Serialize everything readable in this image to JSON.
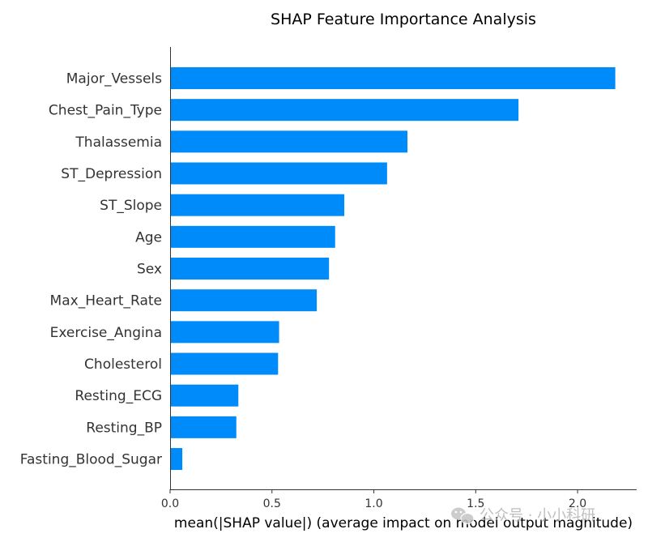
{
  "chart_data": {
    "type": "bar",
    "orientation": "horizontal",
    "title": "SHAP Feature Importance Analysis",
    "xlabel": "mean(|SHAP value|) (average impact on model output magnitude)",
    "ylabel": "",
    "categories": [
      "Major_Vessels",
      "Chest_Pain_Type",
      "Thalassemia",
      "ST_Depression",
      "ST_Slope",
      "Age",
      "Sex",
      "Max_Heart_Rate",
      "Exercise_Angina",
      "Cholesterol",
      "Resting_ECG",
      "Resting_BP",
      "Fasting_Blood_Sugar"
    ],
    "values": [
      2.185,
      1.71,
      1.165,
      1.065,
      0.855,
      0.81,
      0.78,
      0.72,
      0.535,
      0.53,
      0.335,
      0.325,
      0.06
    ],
    "xlim": [
      0,
      2.29
    ],
    "xticks": [
      0.0,
      0.5,
      1.0,
      1.5,
      2.0
    ],
    "xtick_labels": [
      "0.0",
      "0.5",
      "1.0",
      "1.5",
      "2.0"
    ],
    "grid": false,
    "bar_color": "#008bfb"
  },
  "watermark": {
    "text": "公众号 · 小小科研",
    "icon": "wechat-icon"
  }
}
